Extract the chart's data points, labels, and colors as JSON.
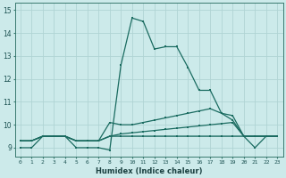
{
  "xlabel": "Humidex (Indice chaleur)",
  "bg_color": "#cceaea",
  "grid_color": "#b0d4d4",
  "line_color": "#1a6b60",
  "xlim": [
    -0.5,
    23.5
  ],
  "ylim": [
    8.6,
    15.3
  ],
  "yticks": [
    9,
    10,
    11,
    12,
    13,
    14,
    15
  ],
  "xticks": [
    0,
    1,
    2,
    3,
    4,
    5,
    6,
    7,
    8,
    9,
    10,
    11,
    12,
    13,
    14,
    15,
    16,
    17,
    18,
    19,
    20,
    21,
    22,
    23
  ],
  "series1_x": [
    0,
    1,
    2,
    3,
    4,
    5,
    6,
    7,
    8,
    9,
    10,
    11,
    12,
    13,
    14,
    15,
    16,
    17,
    18,
    19,
    20,
    21,
    22,
    23
  ],
  "series1_y": [
    9.0,
    9.0,
    9.5,
    9.5,
    9.5,
    9.0,
    9.0,
    9.0,
    8.9,
    12.6,
    14.65,
    14.5,
    13.3,
    13.4,
    13.4,
    12.5,
    11.5,
    11.5,
    10.5,
    10.2,
    9.5,
    9.0,
    9.5,
    9.5
  ],
  "series2_x": [
    0,
    1,
    2,
    3,
    4,
    5,
    6,
    7,
    8,
    9,
    10,
    11,
    12,
    13,
    14,
    15,
    16,
    17,
    18,
    19,
    20,
    21,
    22,
    23
  ],
  "series2_y": [
    9.3,
    9.3,
    9.5,
    9.5,
    9.5,
    9.3,
    9.3,
    9.3,
    9.5,
    9.6,
    9.65,
    9.7,
    9.75,
    9.8,
    9.85,
    9.9,
    9.95,
    10.0,
    10.05,
    10.1,
    9.5,
    9.5,
    9.5,
    9.5
  ],
  "series3_x": [
    0,
    1,
    2,
    3,
    4,
    5,
    6,
    7,
    8,
    9,
    10,
    11,
    12,
    13,
    14,
    15,
    16,
    17,
    18,
    19,
    20,
    21,
    22,
    23
  ],
  "series3_y": [
    9.3,
    9.3,
    9.5,
    9.5,
    9.5,
    9.3,
    9.3,
    9.3,
    10.1,
    10.0,
    10.0,
    10.1,
    10.2,
    10.3,
    10.4,
    10.5,
    10.6,
    10.7,
    10.5,
    10.4,
    9.5,
    9.5,
    9.5,
    9.5
  ],
  "series4_x": [
    0,
    1,
    2,
    3,
    4,
    5,
    6,
    7,
    8,
    9,
    10,
    11,
    12,
    13,
    14,
    15,
    16,
    17,
    18,
    19,
    20,
    21,
    22,
    23
  ],
  "series4_y": [
    9.3,
    9.3,
    9.5,
    9.5,
    9.5,
    9.3,
    9.3,
    9.3,
    9.5,
    9.5,
    9.5,
    9.5,
    9.5,
    9.5,
    9.5,
    9.5,
    9.5,
    9.5,
    9.5,
    9.5,
    9.5,
    9.5,
    9.5,
    9.5
  ]
}
